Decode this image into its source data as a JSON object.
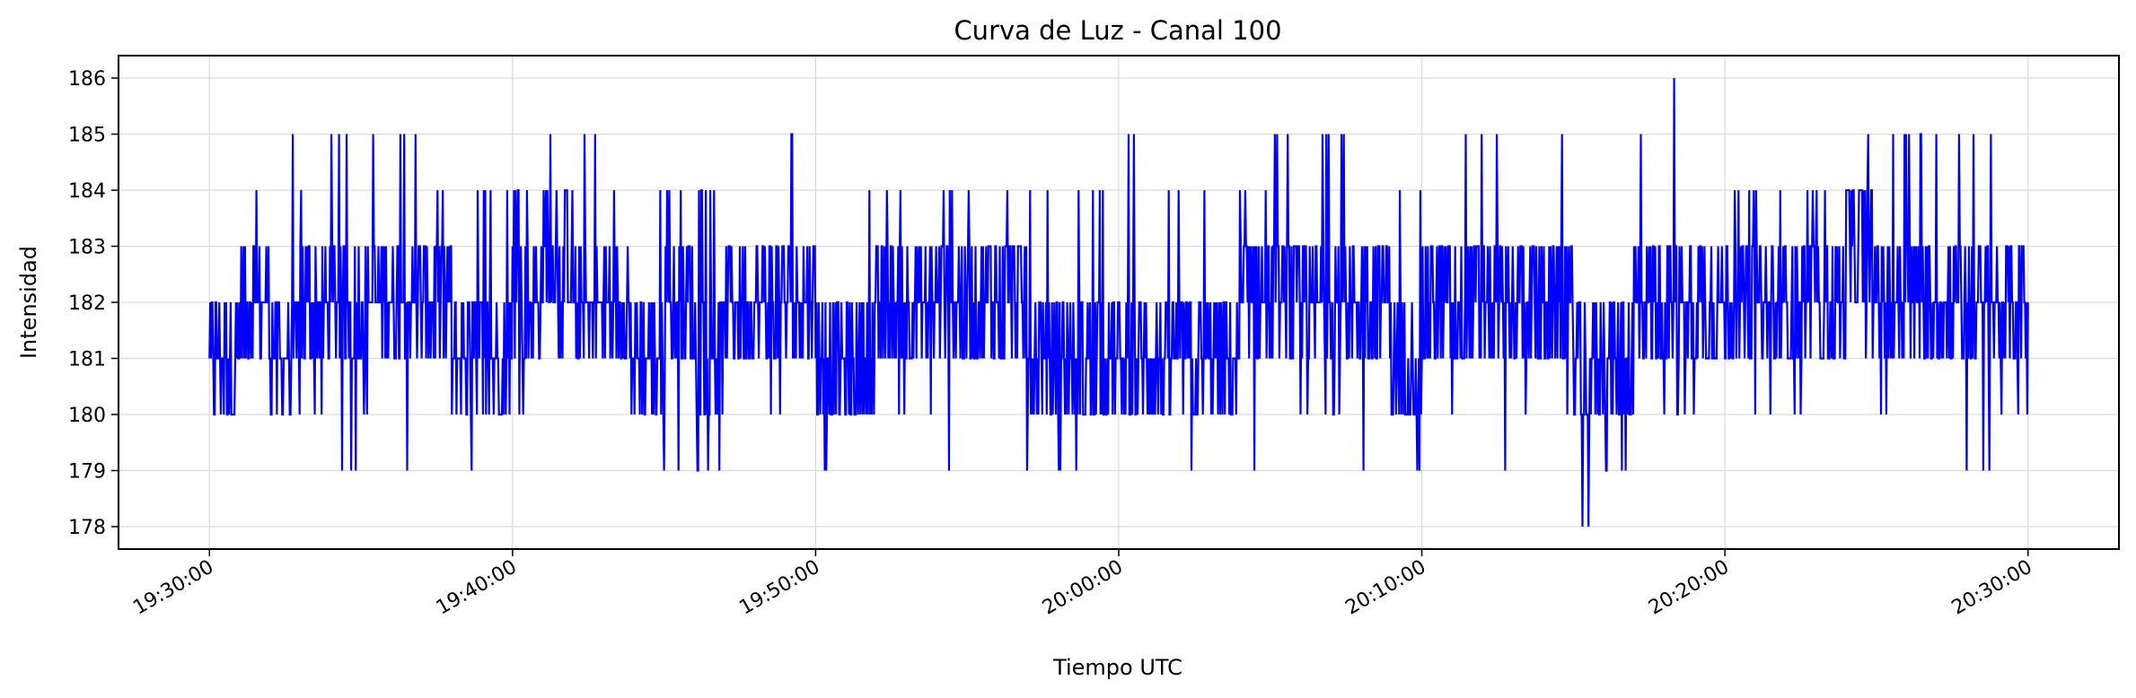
{
  "chart_data": {
    "type": "line",
    "title": "Curva de Luz - Canal 100",
    "xlabel": "Tiempo UTC",
    "ylabel": "Intensidad",
    "x_ticks": [
      "19:30:00",
      "19:40:00",
      "19:50:00",
      "20:00:00",
      "20:10:00",
      "20:20:00",
      "20:30:00"
    ],
    "y_ticks": [
      178,
      179,
      180,
      181,
      182,
      183,
      184,
      185,
      186
    ],
    "xlim": [
      "19:27:00",
      "20:33:00"
    ],
    "ylim": [
      177.6,
      186.4
    ],
    "grid": true,
    "line_color": "#0000ff",
    "series": [
      {
        "x": [
          "19:30:00",
          "19:31:00",
          "19:32:00",
          "19:33:00",
          "19:34:00",
          "19:35:00",
          "19:36:00",
          "19:37:00",
          "19:38:00",
          "19:39:00",
          "19:40:00",
          "19:41:00",
          "19:42:00",
          "19:43:00",
          "19:44:00",
          "19:45:00",
          "19:46:00",
          "19:47:00",
          "19:48:00",
          "19:49:00",
          "19:50:00",
          "19:51:00",
          "19:52:00",
          "19:53:00",
          "19:54:00",
          "19:55:00",
          "19:56:00",
          "19:57:00",
          "19:58:00",
          "19:59:00",
          "20:00:00",
          "20:01:00",
          "20:02:00",
          "20:03:00",
          "20:04:00",
          "20:05:00",
          "20:06:00",
          "20:07:00",
          "20:08:00",
          "20:09:00",
          "20:10:00",
          "20:11:00",
          "20:12:00",
          "20:13:00",
          "20:14:00",
          "20:15:00",
          "20:16:00",
          "20:17:00",
          "20:18:00",
          "20:19:00",
          "20:20:00",
          "20:21:00",
          "20:22:00",
          "20:23:00",
          "20:24:00",
          "20:25:00",
          "20:26:00",
          "20:27:00",
          "20:28:00",
          "20:29:00",
          "20:30:00"
        ],
        "values": [
          181,
          182,
          181,
          182,
          182,
          182,
          182,
          182,
          181,
          181,
          182,
          183,
          182,
          182,
          181,
          182,
          181,
          182,
          182,
          182,
          181,
          181,
          182,
          182,
          182,
          182,
          182,
          181,
          181,
          181,
          181,
          181,
          181,
          181,
          182,
          182,
          182,
          182,
          182,
          181,
          182,
          182,
          182,
          182,
          182,
          181,
          181,
          182,
          182,
          182,
          182,
          182,
          182,
          182,
          183,
          182,
          182,
          182,
          182,
          182,
          182
        ],
        "min": [
          180,
          180,
          180,
          180,
          179,
          180,
          179,
          180,
          179,
          180,
          180,
          181,
          181,
          180,
          180,
          179,
          179,
          180,
          180,
          179,
          179,
          180,
          180,
          180,
          179,
          179,
          179,
          180,
          179,
          180,
          180,
          180,
          179,
          179,
          179,
          180,
          180,
          180,
          179,
          179,
          180,
          180,
          179,
          180,
          180,
          178,
          179,
          179,
          180,
          180,
          180,
          180,
          180,
          180,
          181,
          180,
          180,
          179,
          179,
          180,
          180
        ],
        "max": [
          182,
          184,
          185,
          184,
          185,
          185,
          185,
          184,
          184,
          184,
          184,
          185,
          185,
          184,
          184,
          184,
          184,
          184,
          184,
          185,
          184,
          184,
          184,
          185,
          184,
          184,
          184,
          184,
          184,
          184,
          185,
          184,
          184,
          184,
          184,
          185,
          185,
          185,
          184,
          184,
          185,
          185,
          185,
          184,
          185,
          184,
          184,
          185,
          186,
          185,
          184,
          184,
          184,
          184,
          185,
          185,
          185,
          185,
          185,
          185,
          184
        ]
      }
    ]
  }
}
